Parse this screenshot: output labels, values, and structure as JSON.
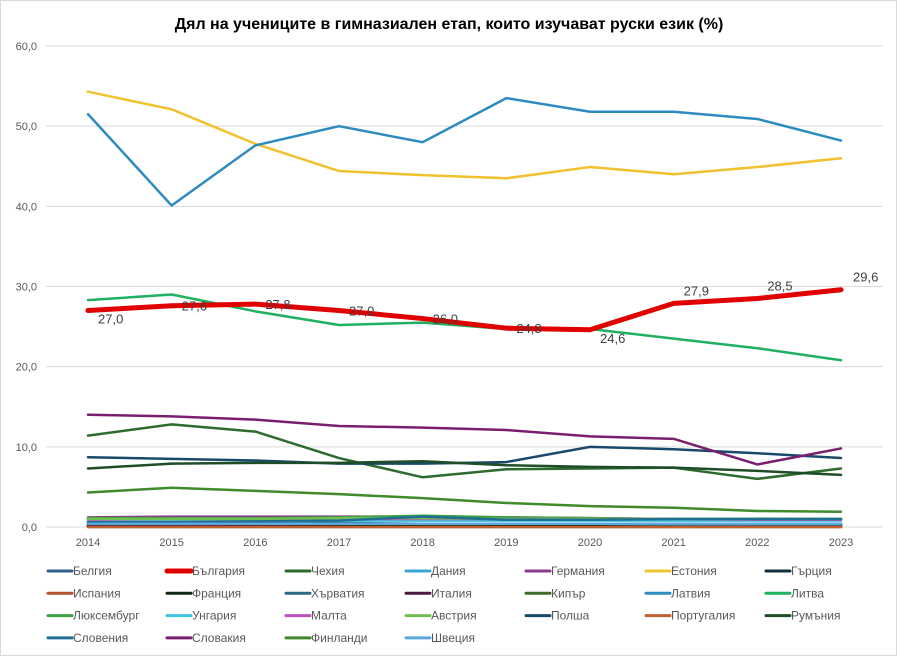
{
  "chart_data": {
    "type": "line",
    "title": "Дял на учениците в гимназиален етап, които изучават руски език (%)",
    "xlabel": "",
    "ylabel": "",
    "x": [
      "2014",
      "2015",
      "2016",
      "2017",
      "2018",
      "2019",
      "2020",
      "2021",
      "2022",
      "2023"
    ],
    "ylim": [
      0,
      60
    ],
    "yticks": [
      "0,0",
      "10,0",
      "20,0",
      "30,0",
      "40,0",
      "50,0",
      "60,0"
    ],
    "grid": true,
    "legend": "bottom",
    "highlight_series": "България",
    "data_labels": [
      "27,0",
      "27,6",
      "27,8",
      "27,0",
      "26,0",
      "24,8",
      "24,6",
      "27,9",
      "28,5",
      "29,6"
    ],
    "series": [
      {
        "name": "Белгия",
        "color": "#2f5f8a",
        "values": [
          0.1,
          0.1,
          0.1,
          0.1,
          0.1,
          0.1,
          0.1,
          0.1,
          0.1,
          0.1
        ]
      },
      {
        "name": "България",
        "color": "#e00000",
        "values": [
          27.0,
          27.6,
          27.8,
          27.0,
          26.0,
          24.8,
          24.6,
          27.9,
          28.5,
          29.6
        ]
      },
      {
        "name": "Чехия",
        "color": "#2e6b2e",
        "values": [
          11.4,
          12.8,
          11.9,
          8.6,
          6.2,
          7.2,
          7.3,
          7.4,
          6.0,
          7.3
        ]
      },
      {
        "name": "Дания",
        "color": "#3aa6d8",
        "values": [
          0.3,
          0.3,
          0.3,
          0.3,
          0.3,
          0.3,
          0.3,
          0.3,
          0.3,
          0.3
        ]
      },
      {
        "name": "Германия",
        "color": "#8e3b8e",
        "values": [
          1.2,
          1.3,
          1.3,
          1.3,
          1.3,
          1.2,
          1.1,
          1.0,
          1.0,
          0.9
        ]
      },
      {
        "name": "Естония",
        "color": "#f2c12e",
        "values": [
          54.3,
          52.1,
          47.8,
          44.4,
          43.9,
          43.5,
          44.9,
          44.0,
          44.9,
          46.0
        ]
      },
      {
        "name": "Гърция",
        "color": "#13303f",
        "values": [
          0.1,
          0.1,
          0.1,
          0.1,
          0.1,
          0.1,
          0.1,
          0.1,
          0.1,
          0.1
        ]
      },
      {
        "name": "Испания",
        "color": "#b0542a",
        "values": [
          0.0,
          0.0,
          0.0,
          0.0,
          0.0,
          0.0,
          0.0,
          0.0,
          0.0,
          0.0
        ]
      },
      {
        "name": "Франция",
        "color": "#0f2a14",
        "values": [
          0.2,
          0.2,
          0.2,
          0.2,
          0.2,
          0.2,
          0.2,
          0.2,
          0.2,
          0.2
        ]
      },
      {
        "name": "Хърватия",
        "color": "#2a6a80",
        "values": [
          0.5,
          0.5,
          0.5,
          0.5,
          0.4,
          0.4,
          0.4,
          0.3,
          0.3,
          0.3
        ]
      },
      {
        "name": "Италия",
        "color": "#4a1a40",
        "values": [
          0.3,
          0.3,
          0.3,
          0.4,
          0.4,
          0.4,
          0.4,
          0.4,
          0.4,
          0.4
        ]
      },
      {
        "name": "Кипър",
        "color": "#3f6b2a",
        "values": [
          1.0,
          1.0,
          1.0,
          1.1,
          1.1,
          1.0,
          1.0,
          1.0,
          1.0,
          1.0
        ]
      },
      {
        "name": "Латвия",
        "color": "#2e8bc0",
        "values": [
          51.5,
          40.1,
          47.6,
          50.0,
          48.0,
          53.5,
          51.8,
          51.8,
          50.9,
          48.2
        ]
      },
      {
        "name": "Литва",
        "color": "#1fb060",
        "values": [
          28.3,
          29.0,
          26.9,
          25.2,
          25.5,
          24.7,
          24.7,
          23.5,
          22.3,
          20.8
        ]
      },
      {
        "name": "Люксембург",
        "color": "#3aa040",
        "values": [
          1.1,
          1.1,
          1.1,
          1.2,
          1.4,
          1.2,
          1.1,
          1.0,
          1.0,
          1.0
        ]
      },
      {
        "name": "Унгария",
        "color": "#3ec3e0",
        "values": [
          0.7,
          0.7,
          0.7,
          0.8,
          0.8,
          0.8,
          0.8,
          0.8,
          0.8,
          0.8
        ]
      },
      {
        "name": "Малта",
        "color": "#c050c0",
        "values": [
          0.9,
          1.0,
          1.0,
          1.0,
          1.0,
          1.0,
          1.0,
          1.0,
          0.9,
          0.9
        ]
      },
      {
        "name": "Австрия",
        "color": "#70c050",
        "values": [
          1.0,
          1.0,
          1.0,
          1.1,
          1.1,
          1.0,
          1.0,
          1.0,
          1.0,
          1.0
        ]
      },
      {
        "name": "Полша",
        "color": "#1a4a6a",
        "values": [
          8.7,
          8.5,
          8.3,
          7.9,
          7.9,
          8.1,
          10.0,
          9.7,
          9.2,
          8.6
        ]
      },
      {
        "name": "Португалия",
        "color": "#c06030",
        "values": [
          0.0,
          0.0,
          0.0,
          0.0,
          0.0,
          0.0,
          0.0,
          0.0,
          0.0,
          0.0
        ]
      },
      {
        "name": "Румъния",
        "color": "#1e4d28",
        "values": [
          7.3,
          7.9,
          8.0,
          8.0,
          8.2,
          7.7,
          7.5,
          7.4,
          7.0,
          6.5
        ]
      },
      {
        "name": "Словения",
        "color": "#1f6e94",
        "values": [
          0.6,
          0.6,
          0.7,
          0.8,
          1.3,
          0.9,
          0.9,
          1.0,
          1.0,
          1.0
        ]
      },
      {
        "name": "Словакия",
        "color": "#7a1f6e",
        "values": [
          14.0,
          13.8,
          13.4,
          12.6,
          12.4,
          12.1,
          11.3,
          11.0,
          7.8,
          9.8
        ]
      },
      {
        "name": "Финланди",
        "color": "#3f8a2a",
        "values": [
          4.3,
          4.9,
          4.5,
          4.1,
          3.6,
          3.0,
          2.6,
          2.4,
          2.0,
          1.9
        ]
      },
      {
        "name": "Швеция",
        "color": "#5aa8dc",
        "values": [
          0.4,
          0.4,
          0.4,
          0.4,
          0.4,
          0.4,
          0.4,
          0.4,
          0.4,
          0.4
        ]
      }
    ]
  }
}
